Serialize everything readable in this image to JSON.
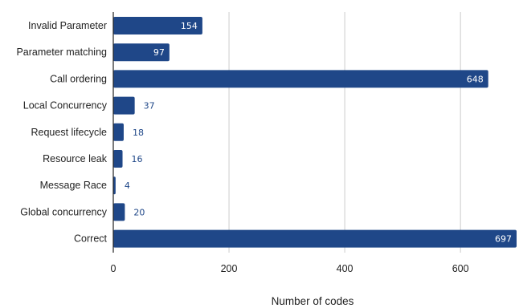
{
  "chart_data": {
    "type": "bar",
    "orientation": "horizontal",
    "categories": [
      "Invalid Parameter",
      "Parameter matching",
      "Call ordering",
      "Local Concurrency",
      "Request lifecycle",
      "Resource leak",
      "Message Race",
      "Global concurrency",
      "Correct"
    ],
    "values": [
      154,
      97,
      648,
      37,
      18,
      16,
      4,
      20,
      697
    ],
    "xlabel": "Number of codes",
    "ylabel": "",
    "xlim": [
      0,
      697
    ],
    "xticks": [
      0,
      200,
      400,
      600
    ],
    "grid": "vertical",
    "bar_color": "#1f4788",
    "label_color_inside": "#ffffff",
    "label_color_outside": "#1f4788",
    "gridline_color": "#cccccc"
  }
}
